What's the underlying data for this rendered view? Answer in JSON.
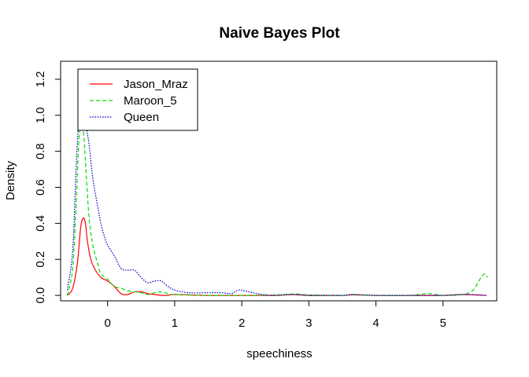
{
  "chart_data": {
    "type": "line",
    "title": "Naive Bayes Plot",
    "xlabel": "speechiness",
    "ylabel": "Density",
    "xlim": [
      -0.7,
      5.8
    ],
    "ylim": [
      -0.03,
      1.3
    ],
    "xticks": [
      0,
      1,
      2,
      3,
      4,
      5
    ],
    "yticks": [
      0.0,
      0.2,
      0.4,
      0.6,
      0.8,
      1.0,
      1.2
    ],
    "ytick_labels": [
      "0.0",
      "0.2",
      "0.4",
      "0.6",
      "0.8",
      "1.0",
      "1.2"
    ],
    "grid": false,
    "legend_position": "top-left",
    "series": [
      {
        "name": "Jason_Mraz",
        "color": "#ff0000",
        "dash": "solid",
        "x": [
          -0.6,
          -0.52,
          -0.45,
          -0.4,
          -0.36,
          -0.33,
          -0.3,
          -0.25,
          -0.18,
          -0.1,
          0.0,
          0.1,
          0.2,
          0.3,
          0.4,
          0.5,
          0.6,
          0.7,
          0.8,
          0.9,
          1.0,
          1.5,
          2.0,
          2.5,
          2.75,
          3.0,
          3.5,
          3.65,
          4.0,
          4.5,
          5.0,
          5.3,
          5.65
        ],
        "y": [
          0.0,
          0.04,
          0.18,
          0.38,
          0.43,
          0.4,
          0.3,
          0.2,
          0.14,
          0.1,
          0.08,
          0.05,
          0.01,
          0.005,
          0.02,
          0.02,
          0.01,
          0.005,
          0.0,
          0.0,
          0.005,
          0.0,
          0.0,
          0.0,
          0.005,
          0.0,
          0.0,
          0.003,
          0.0,
          0.0,
          0.0,
          0.005,
          0.0
        ]
      },
      {
        "name": "Maroon_5",
        "color": "#00dd00",
        "dash": "dashed",
        "x": [
          -0.6,
          -0.52,
          -0.47,
          -0.43,
          -0.4,
          -0.37,
          -0.33,
          -0.28,
          -0.22,
          -0.15,
          -0.1,
          0.0,
          0.1,
          0.2,
          0.3,
          0.4,
          0.5,
          0.6,
          0.7,
          0.8,
          0.9,
          1.0,
          1.5,
          2.0,
          2.5,
          2.8,
          3.0,
          3.5,
          3.65,
          4.0,
          4.5,
          4.78,
          5.0,
          5.3,
          5.45,
          5.55,
          5.62,
          5.66
        ],
        "y": [
          0.0,
          0.15,
          0.5,
          0.85,
          0.98,
          0.96,
          0.75,
          0.45,
          0.28,
          0.18,
          0.12,
          0.09,
          0.05,
          0.04,
          0.025,
          0.02,
          0.015,
          0.005,
          0.015,
          0.02,
          0.01,
          0.005,
          0.0,
          0.0,
          0.003,
          0.008,
          0.003,
          0.0,
          0.005,
          0.0,
          0.0,
          0.01,
          0.0,
          0.005,
          0.03,
          0.09,
          0.12,
          0.1
        ]
      },
      {
        "name": "Queen",
        "color": "#0000cc",
        "dash": "dotted",
        "x": [
          -0.6,
          -0.52,
          -0.47,
          -0.43,
          -0.4,
          -0.37,
          -0.33,
          -0.28,
          -0.22,
          -0.15,
          -0.1,
          -0.05,
          0.0,
          0.1,
          0.2,
          0.3,
          0.4,
          0.5,
          0.6,
          0.7,
          0.8,
          0.9,
          1.0,
          1.2,
          1.5,
          1.7,
          1.85,
          1.95,
          2.1,
          2.3,
          2.5,
          2.8,
          3.0,
          3.5,
          3.65,
          4.0,
          4.5,
          5.0,
          5.3,
          5.65
        ],
        "y": [
          0.03,
          0.25,
          0.7,
          0.97,
          1.0,
          0.98,
          0.95,
          0.85,
          0.65,
          0.5,
          0.4,
          0.33,
          0.28,
          0.22,
          0.15,
          0.14,
          0.14,
          0.1,
          0.07,
          0.08,
          0.08,
          0.05,
          0.03,
          0.015,
          0.015,
          0.015,
          0.01,
          0.03,
          0.02,
          0.005,
          0.0,
          0.005,
          0.0,
          0.0,
          0.005,
          0.0,
          0.0,
          0.0,
          0.005,
          0.0
        ]
      }
    ]
  }
}
